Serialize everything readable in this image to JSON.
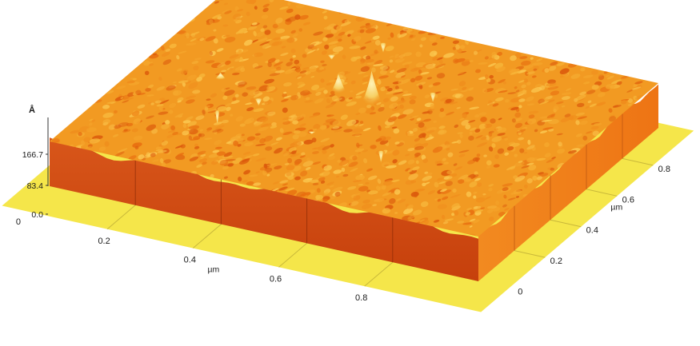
{
  "chart_data": {
    "type": "surface",
    "title": "",
    "z_axis": {
      "unit": "Å",
      "ticks": [
        "0.0",
        "83.4",
        "166.7"
      ],
      "range": [
        0,
        166.7
      ]
    },
    "x_axis": {
      "unit": "µm",
      "ticks": [
        "0",
        "0.2",
        "0.4",
        "0.6",
        "0.8"
      ],
      "range": [
        0,
        1
      ]
    },
    "y_axis": {
      "unit": "µm",
      "ticks": [
        "0",
        "0.2",
        "0.4",
        "0.6",
        "0.8"
      ],
      "range": [
        0,
        1
      ]
    },
    "colors": {
      "base": "#f5e64a",
      "front_face": "#d04a10",
      "side_face": "#f07a18",
      "surface": "#f29a22",
      "peak": "#f8e088"
    },
    "peaks": [
      {
        "x": 0.52,
        "y": 0.55,
        "z": 150
      },
      {
        "x": 0.43,
        "y": 0.58,
        "z": 120
      },
      {
        "x": 0.18,
        "y": 0.52,
        "z": 95
      },
      {
        "x": 0.46,
        "y": 0.36,
        "z": 75
      },
      {
        "x": 0.33,
        "y": 0.78,
        "z": 70
      },
      {
        "x": 0.29,
        "y": 0.47,
        "z": 65
      },
      {
        "x": 0.6,
        "y": 0.7,
        "z": 60
      },
      {
        "x": 0.4,
        "y": 0.9,
        "z": 60
      },
      {
        "x": 0.63,
        "y": 0.34,
        "z": 55
      },
      {
        "x": 0.24,
        "y": 0.36,
        "z": 50
      }
    ]
  }
}
